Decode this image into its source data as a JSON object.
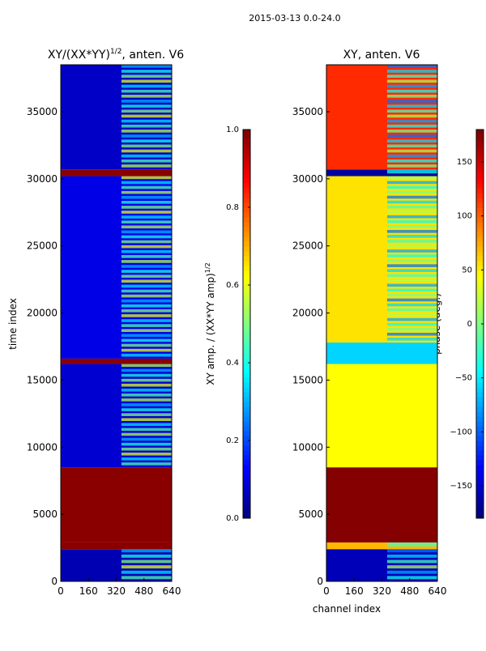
{
  "suptitle": "2015-03-13 0.0-24.0",
  "charts": [
    {
      "title_main": "XY/(XX*YY)",
      "title_sup": "1/2",
      "title_tail": ", anten. V6",
      "ylabel": "time index",
      "xlabel": "",
      "colorbar_label_main": "XY amp. / (XX*YY amp)",
      "colorbar_label_sup": "1/2"
    },
    {
      "title_main": "XY, anten. V6",
      "title_sup": "",
      "title_tail": "",
      "ylabel": "",
      "xlabel": "channel index",
      "colorbar_label_main": "phase (deg.)",
      "colorbar_label_sup": ""
    }
  ],
  "chart_data": [
    {
      "type": "heatmap",
      "title": "XY/(XX*YY)^1/2, anten. V6",
      "xlabel": "",
      "ylabel": "time index",
      "xlim": [
        0,
        640
      ],
      "ylim": [
        0,
        38500
      ],
      "xticks": [
        0,
        160,
        320,
        480,
        640
      ],
      "yticks": [
        0,
        5000,
        10000,
        15000,
        20000,
        25000,
        30000,
        35000
      ],
      "colorbar": {
        "label": "XY amp. / (XX*YY amp)^1/2",
        "min": 0.0,
        "max": 1.0,
        "ticks": [
          0.0,
          0.2,
          0.4,
          0.6,
          0.8,
          1.0
        ],
        "ticklabels": [
          "0.0",
          "0.2",
          "0.4",
          "0.6",
          "0.8",
          "1.0"
        ]
      },
      "bands": [
        {
          "y0": 0,
          "y1": 2400,
          "value": 0.05
        },
        {
          "y0": 2400,
          "y1": 2900,
          "value": 0.99
        },
        {
          "y0": 2900,
          "y1": 8500,
          "value": 0.99
        },
        {
          "y0": 8500,
          "y1": 16200,
          "value": 0.08
        },
        {
          "y0": 16200,
          "y1": 16600,
          "value": 0.99
        },
        {
          "y0": 16600,
          "y1": 30200,
          "value": 0.1
        },
        {
          "y0": 30200,
          "y1": 30700,
          "value": 0.99
        },
        {
          "y0": 30700,
          "y1": 38500,
          "value": 0.07
        }
      ],
      "active_channel_range": [
        350,
        640
      ],
      "active_value": 0.45
    },
    {
      "type": "heatmap",
      "title": "XY, anten. V6",
      "xlabel": "channel index",
      "ylabel": "",
      "xlim": [
        0,
        640
      ],
      "ylim": [
        0,
        38500
      ],
      "xticks": [
        0,
        160,
        320,
        480,
        640
      ],
      "yticks": [
        0,
        5000,
        10000,
        15000,
        20000,
        25000,
        30000,
        35000
      ],
      "colorbar": {
        "label": "phase (deg.)",
        "min": -180,
        "max": 180,
        "ticks": [
          -150,
          -100,
          -50,
          0,
          50,
          100,
          150
        ],
        "ticklabels": [
          "−150",
          "−100",
          "−50",
          "0",
          "50",
          "100",
          "150"
        ]
      },
      "bands": [
        {
          "y0": 0,
          "y1": 2400,
          "value": -160
        },
        {
          "y0": 2400,
          "y1": 2900,
          "value": 70
        },
        {
          "y0": 2900,
          "y1": 8500,
          "value": 178
        },
        {
          "y0": 8500,
          "y1": 16200,
          "value": 45
        },
        {
          "y0": 16200,
          "y1": 17800,
          "value": -60
        },
        {
          "y0": 17800,
          "y1": 30200,
          "value": 55
        },
        {
          "y0": 30200,
          "y1": 30700,
          "value": -170
        },
        {
          "y0": 30700,
          "y1": 38500,
          "value": 120
        }
      ],
      "active_channel_range": [
        350,
        640
      ],
      "active_value": -40
    }
  ]
}
